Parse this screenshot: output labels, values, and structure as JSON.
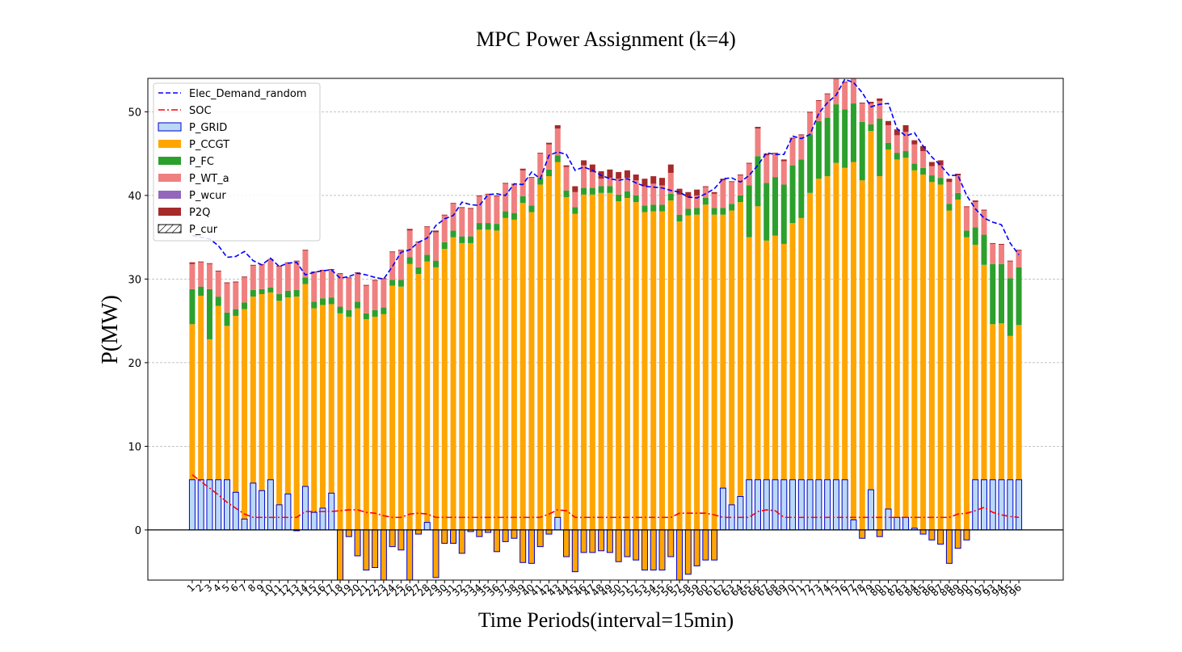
{
  "chart_data": {
    "type": "stacked-bar-line",
    "title": "MPC Power Assignment (k=4)",
    "x_label": "Time Periods(interval=15min)",
    "y_label": "P(MW)",
    "categories": [
      "1",
      "2",
      "3",
      "4",
      "5",
      "6",
      "7",
      "8",
      "9",
      "10",
      "11",
      "12",
      "13",
      "14",
      "15",
      "16",
      "17",
      "18",
      "19",
      "20",
      "21",
      "22",
      "23",
      "24",
      "25",
      "26",
      "27",
      "28",
      "29",
      "30",
      "31",
      "32",
      "33",
      "34",
      "35",
      "36",
      "37",
      "38",
      "39",
      "40",
      "41",
      "42",
      "43",
      "44",
      "45",
      "46",
      "47",
      "48",
      "49",
      "50",
      "51",
      "52",
      "53",
      "54",
      "55",
      "56",
      "57",
      "58",
      "59",
      "60",
      "61",
      "62",
      "63",
      "64",
      "65",
      "66",
      "67",
      "68",
      "69",
      "70",
      "71",
      "72",
      "73",
      "74",
      "75",
      "76",
      "77",
      "78",
      "79",
      "80",
      "81",
      "82",
      "83",
      "84",
      "85",
      "86",
      "87",
      "88",
      "89",
      "90",
      "91",
      "92",
      "93",
      "94",
      "95",
      "96"
    ],
    "ylim": [
      -6,
      54
    ],
    "yticks": [
      0,
      10,
      20,
      30,
      40,
      50
    ],
    "grid": true,
    "zero_line": true,
    "legend": "upper left",
    "series": [
      {
        "name": "Elec_Demand_random",
        "kind": "line",
        "linestyle": "dashed",
        "color": "#0000ff",
        "values": [
          35.2,
          35,
          34.8,
          34,
          32.6,
          32.7,
          33.3,
          32.2,
          31.7,
          32.5,
          31.5,
          31.9,
          32,
          30.5,
          30.8,
          31,
          31.1,
          30.1,
          30.3,
          30.7,
          30.5,
          30.2,
          30,
          31.5,
          33.2,
          33.5,
          34.4,
          34.9,
          36.4,
          37.2,
          37.6,
          39.2,
          38.9,
          38.8,
          40.1,
          40.2,
          40,
          41.4,
          41.3,
          42.8,
          42,
          44.8,
          45.2,
          44.9,
          43,
          43.4,
          43,
          42.4,
          42,
          41.8,
          42,
          41.5,
          41.1,
          41,
          40.9,
          40.6,
          40.4,
          39.8,
          39.7,
          40.2,
          40.8,
          42,
          42.1,
          41.6,
          42.4,
          43.6,
          45.1,
          44.9,
          44.9,
          47.1,
          46.8,
          47.3,
          49.8,
          51.1,
          52,
          53.9,
          53.5,
          52.3,
          50.6,
          50.9,
          51,
          48,
          47.1,
          47.5,
          45.9,
          44.6,
          43.6,
          42.4,
          42.4,
          40,
          38.4,
          37.3,
          36.8,
          36.5,
          34.3,
          32.9
        ]
      },
      {
        "name": "SOC",
        "kind": "line",
        "linestyle": "dashdot",
        "color": "#ff0000",
        "values": [
          6.6,
          5.8,
          5,
          4.2,
          3.3,
          2.6,
          1.9,
          1.5,
          1.5,
          1.5,
          1.5,
          1.5,
          1.5,
          2.2,
          2.2,
          2.2,
          2.2,
          2.3,
          2.4,
          2.4,
          2.1,
          2,
          1.7,
          1.5,
          1.5,
          1.9,
          2,
          1.9,
          1.5,
          1.5,
          1.5,
          1.5,
          1.5,
          1.5,
          1.5,
          1.5,
          1.5,
          1.5,
          1.5,
          1.5,
          1.5,
          1.9,
          2.4,
          2.3,
          1.5,
          1.5,
          1.5,
          1.5,
          1.5,
          1.5,
          1.5,
          1.5,
          1.5,
          1.5,
          1.5,
          1.5,
          2,
          2,
          2,
          2,
          1.8,
          1.5,
          1.5,
          1.5,
          1.5,
          2.2,
          2.4,
          2.3,
          1.5,
          1.5,
          1.5,
          1.5,
          1.5,
          1.5,
          1.5,
          1.5,
          1.5,
          1.5,
          1.5,
          1.5,
          1.5,
          1.5,
          1.5,
          1.5,
          1.5,
          1.5,
          1.5,
          1.5,
          1.9,
          2,
          2.3,
          2.7,
          2.1,
          1.8,
          1.6,
          1.5
        ]
      },
      {
        "name": "P_GRID",
        "kind": "bar",
        "color": "#b9d9f7",
        "edgecolor": "#0000cc",
        "values": [
          6,
          6,
          6,
          6,
          6,
          4.5,
          1.3,
          5.6,
          4.7,
          6,
          3,
          4.3,
          -0.1,
          5.2,
          2.1,
          2.6,
          4.4,
          -6,
          -0.8,
          -3.1,
          -4.8,
          -4.5,
          -6,
          -2,
          -2.4,
          -6,
          -0.5,
          0.9,
          -5.7,
          -1.6,
          -1.6,
          -2.8,
          -0.2,
          -0.8,
          -0.3,
          -2.6,
          -1.4,
          -1,
          -3.9,
          -4,
          -2,
          -0.5,
          1.5,
          -3.2,
          -5,
          -2.7,
          -2.7,
          -2.5,
          -2.7,
          -3.8,
          -3.2,
          -3.6,
          -4.8,
          -4.8,
          -4.8,
          -3.2,
          -6,
          -5.3,
          -4.3,
          -3.6,
          -3.6,
          5,
          3,
          4,
          6,
          6,
          6,
          6,
          6,
          6,
          6,
          6,
          6,
          6,
          6,
          6,
          1.2,
          -1,
          4.8,
          -0.8,
          2.5,
          1.5,
          1.5,
          0.2,
          -0.5,
          -1.2,
          -1.7,
          -4,
          -2.2,
          -1.2,
          6,
          6,
          6,
          6,
          6,
          6
        ]
      },
      {
        "name": "P_CCGT",
        "kind": "bar",
        "color": "#ffa500",
        "values": [
          18.6,
          22,
          16.8,
          20.8,
          18.4,
          21.1,
          25.1,
          22.3,
          23.5,
          22.4,
          24.4,
          23.5,
          28,
          24.2,
          24.4,
          24.3,
          22.6,
          31.9,
          26.3,
          29.6,
          30,
          30,
          31.8,
          31.2,
          31.5,
          37.8,
          31.1,
          31.2,
          37.1,
          35.2,
          36.6,
          37.1,
          34.5,
          36.7,
          36.2,
          38.4,
          38.7,
          38.1,
          43,
          42,
          43.3,
          42.8,
          42.5,
          43,
          42.8,
          42.8,
          42.8,
          42.8,
          43,
          43.1,
          42.9,
          42.8,
          42.8,
          42.9,
          42.9,
          42.6,
          42.9,
          42.9,
          42,
          42.5,
          41.3,
          32.7,
          35.2,
          35.2,
          29,
          32.7,
          28.6,
          29.2,
          28.2,
          30.7,
          31.3,
          34.3,
          36,
          36.3,
          37.9,
          37.3,
          42.8,
          42.8,
          42.9,
          43.1,
          43,
          42.8,
          43,
          42.8,
          43,
          42.8,
          43,
          42.2,
          41.7,
          36.2,
          28.1,
          25.7,
          18.6,
          18.7,
          17.2,
          18.5
        ]
      },
      {
        "name": "P_FC",
        "kind": "bar",
        "color": "#2ca02c",
        "values": [
          4.2,
          1.1,
          6,
          1.1,
          1.6,
          0.8,
          0.8,
          0.8,
          0.6,
          0.6,
          0.8,
          0.8,
          0.8,
          0.8,
          0.8,
          0.8,
          0.8,
          0.8,
          0.8,
          0.8,
          0.7,
          0.8,
          0.8,
          0.7,
          0.8,
          0.8,
          0.8,
          0.8,
          0.8,
          0.8,
          0.8,
          0.8,
          0.8,
          0.8,
          0.8,
          0.8,
          0.8,
          0.8,
          0.8,
          0.8,
          0.8,
          0.8,
          0.8,
          0.8,
          0.8,
          0.8,
          0.8,
          0.8,
          0.8,
          0.8,
          0.8,
          0.8,
          0.8,
          0.8,
          0.8,
          0.8,
          0.8,
          0.8,
          0.8,
          0.8,
          0.8,
          0.8,
          0.8,
          0.8,
          6.2,
          6,
          6.9,
          7,
          7.1,
          6.9,
          7,
          7,
          6.9,
          7,
          7,
          7,
          7,
          7,
          0.8,
          6.9,
          0.8,
          0.8,
          0.8,
          0.8,
          0.8,
          0.8,
          0.8,
          0.8,
          0.8,
          0.8,
          2.1,
          3.6,
          7.2,
          7.1,
          6.9,
          6.9
        ]
      },
      {
        "name": "P_WT_a",
        "kind": "bar",
        "color": "#f08080",
        "values": [
          3,
          2.9,
          3,
          3,
          3.5,
          3.2,
          3,
          2.9,
          2.9,
          3.3,
          3.3,
          3.3,
          3.4,
          3.2,
          3.5,
          3.3,
          3.3,
          3.9,
          3.8,
          3.4,
          3.3,
          3.5,
          3.4,
          3.3,
          3.5,
          3.2,
          3,
          3.3,
          3.4,
          3.2,
          3.2,
          3.4,
          3.3,
          3.2,
          3.4,
          3.3,
          3.3,
          3.4,
          3.1,
          3.3,
          2.9,
          3,
          3.2,
          2.8,
          1.8,
          2.7,
          1.9,
          0.9,
          1,
          1.9,
          1.6,
          1.8,
          2.3,
          2.5,
          2.3,
          2.5,
          2.4,
          1.4,
          1.5,
          1.3,
          1.7,
          3.3,
          2.6,
          2.4,
          2.6,
          3.3,
          3.3,
          2.8,
          2.8,
          3.2,
          2.9,
          2.6,
          2.4,
          2.8,
          3.1,
          3.2,
          3,
          2.2,
          2.5,
          2.1,
          2.1,
          2.1,
          2.3,
          2.3,
          2,
          1.1,
          1.5,
          2.6,
          2.1,
          2.8,
          3,
          2.9,
          2.4,
          2.3,
          2,
          2
        ]
      },
      {
        "name": "P_wcur",
        "kind": "bar",
        "color": "#9467bd",
        "values": [
          0,
          0,
          0,
          0,
          0,
          0,
          0,
          0,
          0,
          0,
          0,
          0,
          0,
          0,
          0,
          0,
          0,
          0,
          0,
          0,
          0,
          0,
          0,
          0,
          0,
          0,
          0,
          0,
          0,
          0,
          0,
          0,
          0,
          0,
          0,
          0,
          0,
          0,
          0,
          0,
          0,
          0,
          0,
          0,
          0,
          0,
          0,
          0,
          0,
          0,
          0,
          0,
          0,
          0,
          0,
          0,
          0,
          0,
          0,
          0,
          0,
          0,
          0,
          0,
          0,
          0,
          0,
          0,
          0,
          0,
          0,
          0,
          0,
          0,
          0,
          0,
          0,
          0,
          0,
          0,
          0,
          0,
          0,
          0,
          0,
          0,
          0,
          0,
          0,
          0,
          0,
          0,
          0,
          0,
          0,
          0
        ]
      },
      {
        "name": "P2Q",
        "kind": "bar",
        "color": "#a52a2a",
        "values": [
          0.2,
          0.1,
          0.1,
          0.1,
          0.1,
          0.1,
          0.1,
          0.1,
          0.1,
          0.1,
          0.1,
          0.1,
          0.1,
          0.1,
          0.1,
          0.1,
          0.1,
          0.1,
          0.1,
          0.1,
          0.1,
          0.1,
          0.1,
          0.1,
          0.1,
          0.2,
          0.1,
          0.1,
          0.2,
          0.1,
          0.1,
          0.1,
          0.1,
          0.1,
          0.1,
          0.1,
          0.1,
          0.1,
          0.2,
          0.1,
          0.1,
          0.2,
          0.4,
          0.2,
          0.7,
          0.6,
          0.9,
          0.9,
          1,
          0.8,
          0.9,
          0.7,
          0.9,
          0.9,
          0.9,
          1,
          0.7,
          0.6,
          0.7,
          0.1,
          0.2,
          0.2,
          0.1,
          0.1,
          0.1,
          0.2,
          0.2,
          0.1,
          0.2,
          0.1,
          0.1,
          0.1,
          0.1,
          0.1,
          0.1,
          0.1,
          0.5,
          0.1,
          0.2,
          0.3,
          0.5,
          0.7,
          0.8,
          0.5,
          0.6,
          0.5,
          0.6,
          0.4,
          0.2,
          0.1,
          0.2,
          0.1,
          0.1,
          0.1,
          0.1,
          0.1
        ]
      },
      {
        "name": "P_cur",
        "kind": "bar",
        "color": "#ffffff",
        "hatch": true,
        "values": [
          0,
          0,
          0,
          0,
          0,
          0,
          0,
          0,
          0,
          0,
          0,
          0,
          0,
          0,
          0,
          0,
          0,
          0,
          0,
          0,
          0,
          0,
          0,
          0,
          0,
          0,
          0,
          0,
          0,
          0,
          0,
          0,
          0,
          0,
          0,
          0,
          0,
          0,
          0,
          0,
          0,
          0,
          0,
          0,
          0,
          0,
          0,
          0,
          0,
          0,
          0,
          0,
          0,
          0,
          0,
          0,
          0,
          0,
          0,
          0,
          0,
          0,
          0,
          0,
          0,
          0,
          0,
          0,
          0,
          0,
          0,
          0,
          0,
          0,
          0,
          0,
          0,
          0,
          0,
          0,
          0,
          0,
          0,
          0,
          0,
          0,
          0,
          0,
          0,
          0,
          0,
          0,
          0,
          0,
          0,
          0
        ]
      }
    ]
  }
}
